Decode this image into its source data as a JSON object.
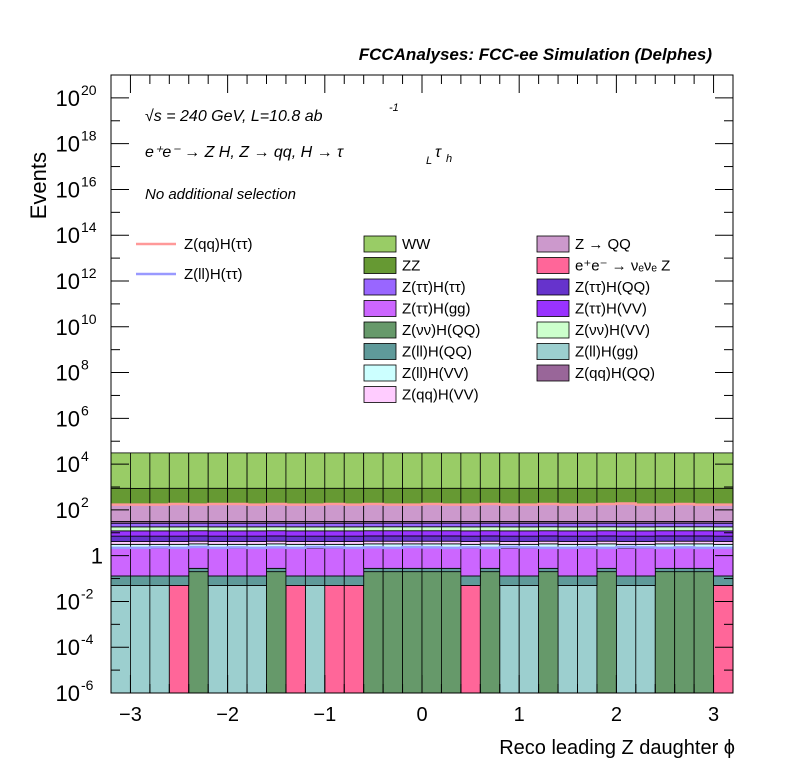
{
  "header": {
    "title": "FCCAnalyses: FCC-ee Simulation (Delphes)",
    "energy_line": "√s = 240 GeV, L=10.8 ab",
    "energy_exp": "-1",
    "process_line": "e⁺e⁻ → Z H, Z → qq, H → τ",
    "process_sub1": "L",
    "process_tau2": "τ",
    "process_sub2": "h",
    "selection": "No additional selection"
  },
  "chart_data": {
    "type": "bar",
    "stacked": true,
    "xlabel": "Reco leading Z daughter ϕ",
    "ylabel": "Events",
    "xlim": [
      -3.2,
      3.2
    ],
    "ylim": [
      1e-06,
      1e+21
    ],
    "log_y": true,
    "x_ticks": [
      {
        "value": -3,
        "label": "−3"
      },
      {
        "value": -2,
        "label": "−2"
      },
      {
        "value": -1,
        "label": "−1"
      },
      {
        "value": 0,
        "label": "0"
      },
      {
        "value": 1,
        "label": "1"
      },
      {
        "value": 2,
        "label": "2"
      },
      {
        "value": 3,
        "label": "3"
      }
    ],
    "y_ticks": [
      {
        "value": 1e-06,
        "base": "10",
        "exp": "-6"
      },
      {
        "value": 0.0001,
        "base": "10",
        "exp": "-4"
      },
      {
        "value": 0.01,
        "base": "10",
        "exp": "-2"
      },
      {
        "value": 1,
        "base": "1",
        "exp": ""
      },
      {
        "value": 100.0,
        "base": "10",
        "exp": "2"
      },
      {
        "value": 10000.0,
        "base": "10",
        "exp": "4"
      },
      {
        "value": 1000000.0,
        "base": "10",
        "exp": "6"
      },
      {
        "value": 100000000.0,
        "base": "10",
        "exp": "8"
      },
      {
        "value": 10000000000.0,
        "base": "10",
        "exp": "10"
      },
      {
        "value": 1000000000000.0,
        "base": "10",
        "exp": "12"
      },
      {
        "value": 100000000000000.0,
        "base": "10",
        "exp": "14"
      },
      {
        "value": 1e+16,
        "base": "10",
        "exp": "16"
      },
      {
        "value": 1e+18,
        "base": "10",
        "exp": "18"
      },
      {
        "value": 1e+20,
        "base": "10",
        "exp": "20"
      }
    ],
    "bin_edges": [
      -3.2,
      -3.0,
      -2.8,
      -2.6,
      -2.4,
      -2.2,
      -2.0,
      -1.8,
      -1.6,
      -1.4,
      -1.2,
      -1.0,
      -0.8,
      -0.6,
      -0.4,
      -0.2,
      0.0,
      0.2,
      0.4,
      0.6,
      0.8,
      1.0,
      1.2,
      1.4,
      1.6,
      1.8,
      2.0,
      2.2,
      2.4,
      2.6,
      2.8,
      3.0,
      3.2
    ],
    "series": [
      {
        "name": "Z(ll)H(gg)",
        "color": "#9ccfcf",
        "values": [
          0.05,
          0.05,
          0.05,
          0,
          0,
          0.05,
          0.05,
          0.05,
          0,
          0,
          0.05,
          0,
          0,
          0,
          0,
          0,
          0,
          0,
          0,
          0,
          0.05,
          0.05,
          0,
          0.05,
          0.05,
          0,
          0.05,
          0.05,
          0,
          0,
          0,
          0
        ]
      },
      {
        "name": "e⁺e⁻ → νₑνₑ Z",
        "color": "#ff6699",
        "values": [
          0,
          0,
          0,
          0.05,
          0,
          0,
          0,
          0,
          0,
          0.05,
          0,
          0.05,
          0.05,
          0,
          0,
          0,
          0,
          0,
          0.05,
          0,
          0,
          0,
          0,
          0,
          0,
          0,
          0,
          0,
          0,
          0,
          0,
          0.05
        ]
      },
      {
        "name": "Z(νν)H(QQ)",
        "color": "#66996a",
        "values": [
          0,
          0,
          0,
          0,
          0.2,
          0,
          0,
          0,
          0.2,
          0,
          0,
          0,
          0,
          0.2,
          0.2,
          0.2,
          0.2,
          0.2,
          0,
          0.2,
          0,
          0,
          0.2,
          0,
          0,
          0.2,
          0,
          0,
          0.2,
          0.2,
          0.2,
          0
        ]
      },
      {
        "name": "Z(ll)H(QQ)",
        "color": "#5f9a9a",
        "values": [
          0.08,
          0.08,
          0.08,
          0.08,
          0.08,
          0.08,
          0.08,
          0.08,
          0.08,
          0.08,
          0.08,
          0.08,
          0.08,
          0.08,
          0.08,
          0.08,
          0.08,
          0.08,
          0.08,
          0.08,
          0.08,
          0.08,
          0.08,
          0.08,
          0.08,
          0.08,
          0.08,
          0.08,
          0.08,
          0.08,
          0.08,
          0.08
        ]
      },
      {
        "name": "Z(ττ)H(gg)",
        "color": "#cc66ff",
        "values": [
          2,
          2,
          2,
          2,
          2,
          2,
          2,
          2,
          2,
          2,
          2,
          2,
          2,
          2,
          2,
          2,
          2,
          2,
          2,
          2,
          2,
          2,
          2,
          2,
          2,
          2,
          2,
          2,
          2,
          2,
          2,
          2
        ]
      },
      {
        "name": "Z(ll)H(VV)",
        "color": "#ccffff",
        "values": [
          1,
          1,
          1,
          1,
          1,
          1,
          1,
          1,
          1,
          1,
          1,
          1,
          1,
          1,
          1,
          1,
          1,
          1,
          1,
          1,
          1,
          1,
          1,
          1,
          1,
          1,
          1,
          1,
          1,
          1,
          1,
          1
        ]
      },
      {
        "name": "Z(qq)H(VV)",
        "color": "#ffccff",
        "values": [
          1,
          1,
          1,
          1,
          1,
          1,
          1,
          1,
          1,
          1,
          1,
          1,
          1,
          1,
          1,
          1,
          1,
          1,
          1,
          1,
          1,
          1,
          1,
          1,
          1,
          1,
          1,
          1,
          1,
          1,
          1,
          1
        ]
      },
      {
        "name": "Z(ττ)H(QQ)",
        "color": "#6633cc",
        "values": [
          3,
          3,
          3,
          3,
          3,
          3,
          3,
          3,
          3,
          3,
          3,
          3,
          3,
          3,
          3,
          3,
          3,
          3,
          3,
          3,
          3,
          3,
          3,
          3,
          3,
          3,
          3,
          3,
          3,
          3,
          3,
          3
        ]
      },
      {
        "name": "Z(ττ)H(VV)",
        "color": "#9933ff",
        "values": [
          5,
          5,
          5,
          5,
          5,
          5,
          5,
          5,
          5,
          5,
          5,
          5,
          5,
          5,
          5,
          5,
          5,
          5,
          5,
          5,
          5,
          5,
          5,
          5,
          5,
          5,
          5,
          5,
          5,
          5,
          5,
          5
        ]
      },
      {
        "name": "Z(νν)H(VV)",
        "color": "#ccffcc",
        "values": [
          6,
          6,
          6,
          6,
          6,
          6,
          6,
          6,
          6,
          6,
          6,
          6,
          6,
          6,
          6,
          6,
          6,
          6,
          6,
          6,
          6,
          6,
          6,
          6,
          6,
          6,
          6,
          6,
          6,
          6,
          6,
          6
        ]
      },
      {
        "name": "Z(ττ)H(ττ)",
        "color": "#9966ff",
        "values": [
          8,
          8,
          8,
          8,
          8,
          8,
          8,
          8,
          8,
          8,
          8,
          8,
          8,
          8,
          8,
          8,
          8,
          8,
          8,
          8,
          8,
          8,
          8,
          8,
          8,
          8,
          8,
          8,
          8,
          8,
          8,
          8
        ]
      },
      {
        "name": "Z(qq)H(QQ)",
        "color": "#996699",
        "values": [
          5,
          5,
          5,
          5,
          5,
          5,
          5,
          5,
          5,
          5,
          5,
          5,
          5,
          5,
          5,
          5,
          5,
          5,
          5,
          5,
          5,
          5,
          5,
          5,
          5,
          5,
          5,
          5,
          5,
          5,
          5,
          5
        ]
      },
      {
        "name": "Z → QQ",
        "color": "#cc99cc",
        "values": [
          150,
          140,
          150,
          150,
          150,
          150,
          150,
          150,
          150,
          150,
          150,
          150,
          150,
          150,
          150,
          150,
          150,
          150,
          150,
          150,
          150,
          150,
          150,
          150,
          150,
          150,
          150,
          150,
          150,
          150,
          150,
          150
        ]
      },
      {
        "name": "ZZ",
        "color": "#669933",
        "values": [
          700,
          700,
          700,
          700,
          700,
          700,
          700,
          700,
          700,
          700,
          700,
          700,
          700,
          700,
          700,
          700,
          700,
          700,
          700,
          700,
          700,
          700,
          700,
          700,
          700,
          700,
          700,
          700,
          700,
          700,
          700,
          700
        ]
      },
      {
        "name": "WW",
        "color": "#99cc66",
        "values": [
          30000,
          30000,
          30000,
          30000,
          30000,
          30000,
          30000,
          30000,
          30000,
          30000,
          30000,
          30000,
          30000,
          30000,
          30000,
          30000,
          30000,
          30000,
          30000,
          30000,
          30000,
          30000,
          30000,
          30000,
          30000,
          30000,
          30000,
          30000,
          30000,
          30000,
          30000,
          30000
        ]
      }
    ],
    "signals": [
      {
        "name": "Z(qq)H(ττ)",
        "color": "#ff9999",
        "values": [
          170,
          170,
          170,
          180,
          170,
          180,
          180,
          170,
          180,
          170,
          170,
          180,
          170,
          180,
          170,
          170,
          180,
          170,
          170,
          180,
          170,
          170,
          180,
          170,
          170,
          180,
          190,
          170,
          170,
          180,
          170,
          170
        ]
      },
      {
        "name": "Z(ll)H(ττ)",
        "color": "#9999ff",
        "values": [
          2.2,
          2.2,
          2.3,
          2.2,
          2.4,
          2.2,
          2.3,
          2.2,
          2.3,
          2.2,
          2.4,
          2.3,
          2.2,
          2.3,
          2.2,
          2.4,
          2.3,
          2.2,
          2.3,
          2.2,
          2.4,
          2.3,
          2.2,
          2.2,
          2.3,
          2.2,
          2.4,
          2.3,
          2.2,
          2.3,
          2.2,
          2.2
        ]
      }
    ],
    "legend": {
      "placement": "top-right",
      "left_column": [
        "WW",
        "ZZ",
        "Z(ττ)H(ττ)",
        "Z(ττ)H(gg)",
        "Z(νν)H(QQ)",
        "Z(ll)H(QQ)",
        "Z(ll)H(VV)",
        "Z(qq)H(VV)"
      ],
      "right_column": [
        "Z → QQ",
        "e⁺e⁻ → νₑνₑ Z",
        "Z(ττ)H(QQ)",
        "Z(ττ)H(VV)",
        "Z(νν)H(VV)",
        "Z(ll)H(gg)",
        "Z(qq)H(QQ)"
      ],
      "signal_column": [
        "Z(qq)H(ττ)",
        "Z(ll)H(ττ)"
      ]
    }
  }
}
